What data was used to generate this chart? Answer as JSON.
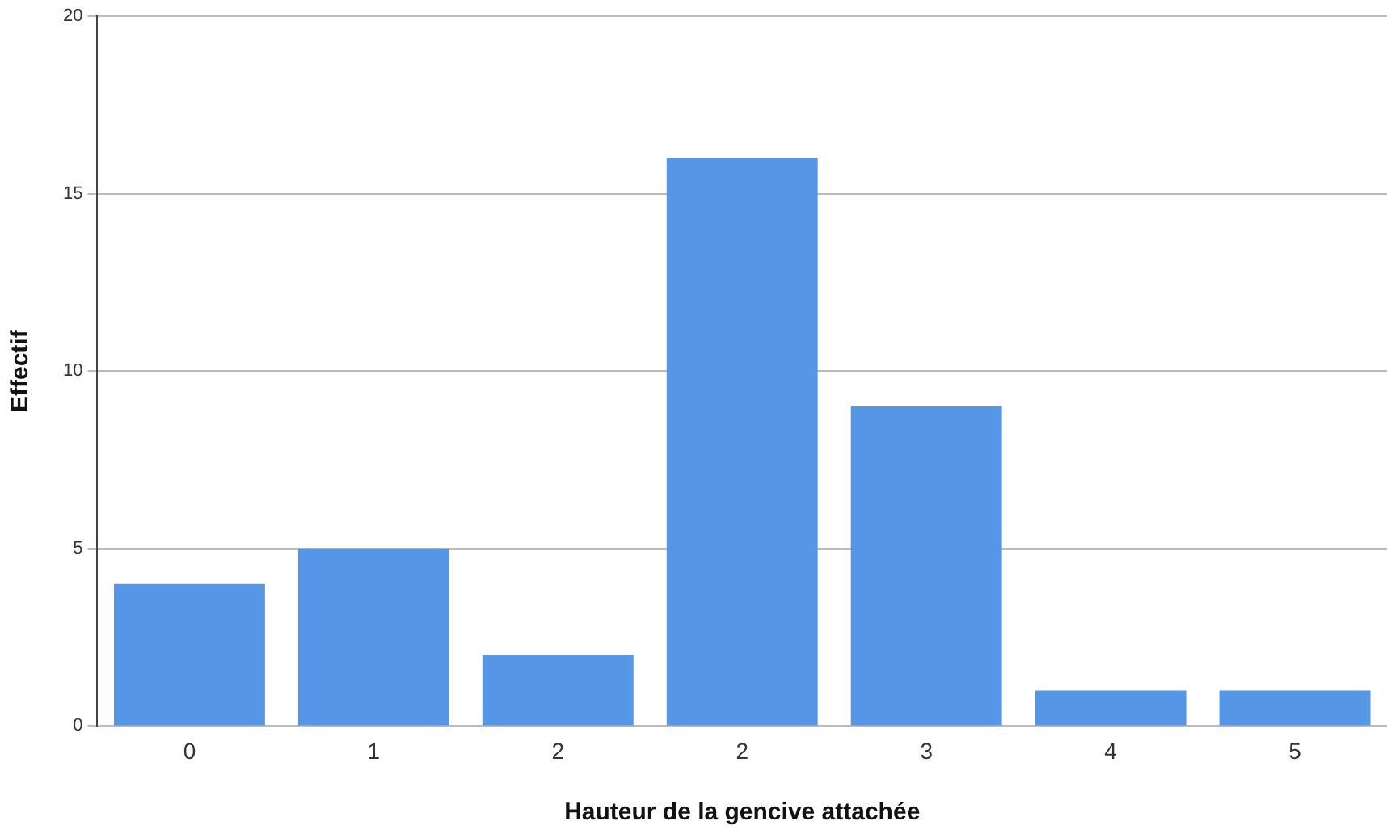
{
  "chart_data": {
    "type": "bar",
    "xlabel": "Hauteur de la gencive attachée",
    "ylabel": "Effectif",
    "categories": [
      "0",
      "1",
      "2",
      "2",
      "3",
      "4",
      "5"
    ],
    "values": [
      4,
      5,
      2,
      16,
      9,
      1,
      1
    ],
    "color": "#5596e6",
    "ylim": [
      0,
      20
    ],
    "yticks": [
      0,
      5,
      10,
      15,
      20
    ],
    "grid": "y"
  }
}
